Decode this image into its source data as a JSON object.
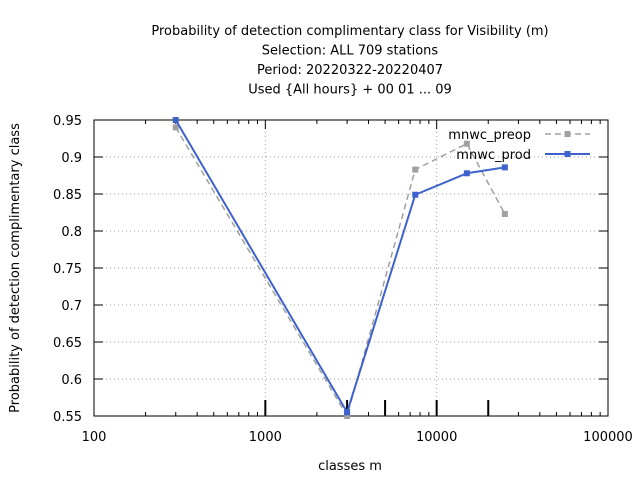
{
  "chart_data": {
    "type": "line",
    "title_lines": [
      "Probability of detection complimentary class  for Visibility (m)",
      "Selection: ALL    709 stations",
      "Period: 20220322-20220407",
      "Used {All hours} + 00 01 ... 09"
    ],
    "xlabel": "classes m",
    "ylabel": "Probability of detection complimentary class",
    "x_scale": "log",
    "xlim": [
      100,
      100000
    ],
    "ylim": [
      0.55,
      0.95
    ],
    "x_ticks": [
      100,
      1000,
      10000,
      100000
    ],
    "x_tick_labels": [
      "100",
      "1000",
      "10000",
      "100000"
    ],
    "y_ticks": [
      0.55,
      0.6,
      0.65,
      0.7,
      0.75,
      0.8,
      0.85,
      0.9,
      0.95
    ],
    "y_tick_labels": [
      "0.55",
      "0.6",
      "0.65",
      "0.7",
      "0.75",
      "0.8",
      "0.85",
      "0.9",
      "0.95"
    ],
    "class_markers": [
      1000,
      3000,
      5000,
      10000,
      20000
    ],
    "grid": true,
    "legend_position": "top-right",
    "series": [
      {
        "name": "mnwc_preop",
        "color": "#a0a0a0",
        "dashed": true,
        "x": [
          300,
          3000,
          7500,
          15000,
          25000
        ],
        "y": [
          0.94,
          0.55,
          0.883,
          0.918,
          0.823
        ]
      },
      {
        "name": "mnwc_prod",
        "color": "#3d62cc",
        "dashed": false,
        "x": [
          300,
          3000,
          7500,
          15000,
          25000
        ],
        "y": [
          0.95,
          0.555,
          0.849,
          0.878,
          0.886
        ]
      }
    ]
  }
}
